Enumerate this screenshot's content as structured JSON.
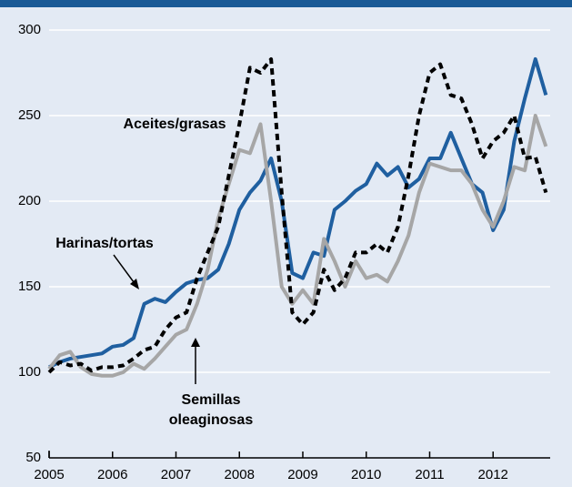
{
  "chart_data": {
    "type": "line",
    "x": [
      2005,
      2005.167,
      2005.333,
      2005.5,
      2005.667,
      2005.833,
      2006,
      2006.167,
      2006.333,
      2006.5,
      2006.667,
      2006.833,
      2007,
      2007.167,
      2007.333,
      2007.5,
      2007.667,
      2007.833,
      2008,
      2008.167,
      2008.333,
      2008.5,
      2008.667,
      2008.833,
      2009,
      2009.167,
      2009.333,
      2009.5,
      2009.667,
      2009.833,
      2010,
      2010.167,
      2010.333,
      2010.5,
      2010.667,
      2010.833,
      2011,
      2011.167,
      2011.333,
      2011.5,
      2011.667,
      2011.833,
      2012,
      2012.167,
      2012.333,
      2012.5,
      2012.667,
      2012.833
    ],
    "series": [
      {
        "name": "Harinas/tortas",
        "color": "#1f5fa0",
        "style": "solid",
        "values": [
          103,
          106,
          108,
          109,
          110,
          111,
          115,
          116,
          120,
          140,
          143,
          141,
          147,
          152,
          154,
          155,
          160,
          175,
          195,
          205,
          212,
          225,
          200,
          158,
          155,
          170,
          168,
          195,
          200,
          206,
          210,
          222,
          215,
          220,
          208,
          213,
          225,
          225,
          240,
          225,
          210,
          205,
          183,
          195,
          235,
          260,
          283,
          262
        ]
      },
      {
        "name": "Semillas oleaginosas",
        "color": "#a6a6a6",
        "style": "solid",
        "values": [
          102,
          110,
          112,
          103,
          99,
          98,
          98,
          100,
          105,
          102,
          108,
          115,
          122,
          125,
          140,
          160,
          190,
          210,
          230,
          228,
          245,
          200,
          150,
          140,
          148,
          140,
          178,
          165,
          150,
          165,
          155,
          157,
          153,
          165,
          180,
          205,
          222,
          220,
          218,
          218,
          210,
          195,
          185,
          200,
          220,
          218,
          250,
          232
        ]
      },
      {
        "name": "Aceites/grasas",
        "color": "#000000",
        "style": "dashed",
        "values": [
          100,
          106,
          104,
          105,
          101,
          103,
          103,
          104,
          108,
          113,
          115,
          125,
          132,
          135,
          155,
          170,
          185,
          215,
          245,
          278,
          275,
          283,
          205,
          135,
          128,
          135,
          160,
          148,
          155,
          170,
          170,
          175,
          170,
          185,
          215,
          250,
          275,
          280,
          262,
          260,
          245,
          225,
          235,
          240,
          250,
          225,
          226,
          205
        ]
      }
    ],
    "xlim": [
      2005,
      2012.9
    ],
    "xticks": [
      2005,
      2006,
      2007,
      2008,
      2009,
      2010,
      2011,
      2012
    ],
    "ylim": [
      50,
      300
    ],
    "yticks": [
      50,
      100,
      150,
      200,
      250,
      300
    ],
    "grid": true
  }
}
